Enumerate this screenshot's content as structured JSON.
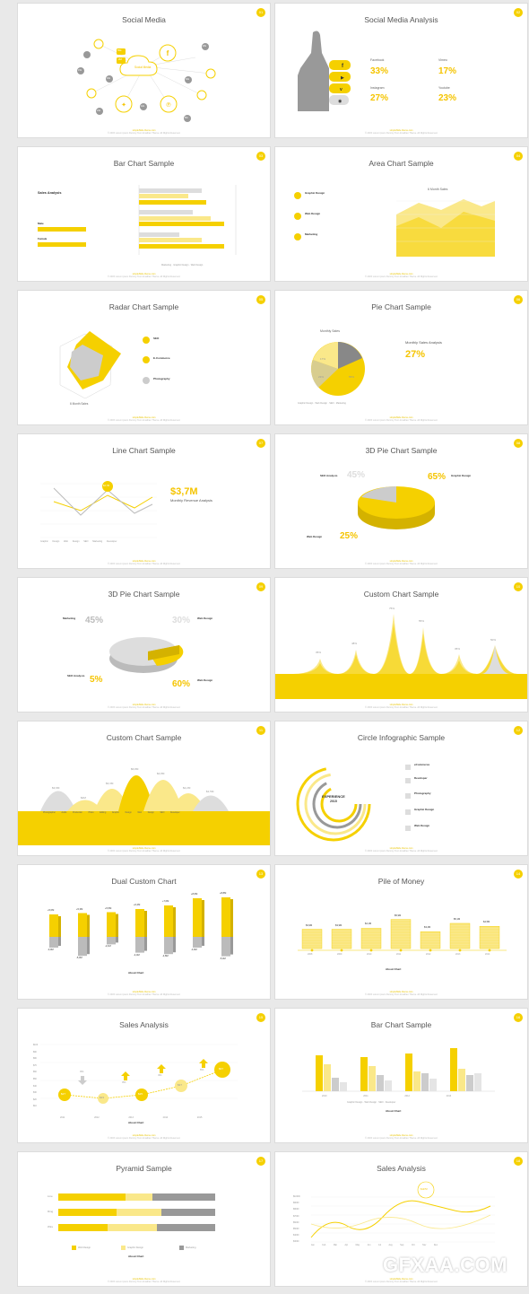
{
  "footer_label": "simpleSlide theme.com",
  "footer_copy": "© 2015 Lorem ipsum Dummy Text Jonathan Theme. All Rights Reserved.",
  "slides": [
    {
      "num": "01",
      "title": "Social Media",
      "cloud": "Social Media",
      "badges": [
        "55k",
        "2M",
        "46k",
        "15k",
        "24k",
        "42k",
        "30k",
        "28k",
        "8M"
      ]
    },
    {
      "num": "02",
      "title": "Social Media Analysis",
      "items": [
        {
          "name": "Facebook",
          "value": "33%"
        },
        {
          "name": "Vimeo",
          "value": "17%"
        },
        {
          "name": "Instagram",
          "value": "27%"
        },
        {
          "name": "Youtube",
          "value": "23%"
        }
      ]
    },
    {
      "num": "03",
      "title": "Bar Chart Sample",
      "left_title": "Sales Analysis",
      "male": "Male",
      "female": "Female",
      "legend": [
        "Marketing",
        "Graphic Design",
        "Web Design"
      ]
    },
    {
      "num": "04",
      "title": "Area Chart Sample",
      "chart_title": "6 Month Sales",
      "items": [
        "Graphic Design",
        "Web Design",
        "Marketing"
      ]
    },
    {
      "num": "05",
      "title": "Radar Chart Sample",
      "caption": "6 Month Sales",
      "axes": [
        "Web Design",
        "Graphic",
        "SEO",
        "Marketing",
        "Animation",
        "Development"
      ],
      "items": [
        "SEO",
        "E-Commerce",
        "Photography"
      ]
    },
    {
      "num": "06",
      "title": "Pie Chart Sample",
      "chart_title": "Monthly Sales",
      "right_title": "Monthly Sales Analysis",
      "big": "27%",
      "pie_labels": [
        "17%",
        "23%",
        "55%"
      ],
      "legend": [
        "Graphic Design",
        "Web Design",
        "SEO",
        "Marketing"
      ]
    },
    {
      "num": "07",
      "title": "Line Chart Sample",
      "marker": "$3,7M",
      "big": "$3,7M",
      "right_title": "Monthly Revenue Analysis",
      "xlabels": [
        "Graphic Design",
        "Web Design",
        "SEO",
        "Marketing",
        "Developer"
      ]
    },
    {
      "num": "08",
      "title": "3D Pie Chart Sample",
      "labels": [
        {
          "name": "SEO Analysis",
          "value": "45%"
        },
        {
          "name": "Graphic Design",
          "value": "65%"
        },
        {
          "name": "Web Design",
          "value": "25%"
        }
      ]
    },
    {
      "num": "09",
      "title": "3D Pie Chart Sample",
      "labels": [
        {
          "name": "Marketing",
          "value": "45%"
        },
        {
          "name": "Web Design",
          "value": "30%"
        },
        {
          "name": "SEO Analysis",
          "value": "5%"
        },
        {
          "name": "Web Design",
          "value": "60%"
        }
      ]
    },
    {
      "num": "10",
      "title": "Custom Chart Sample",
      "peaks": [
        "35%",
        "48%",
        "75%",
        "55%",
        "35%",
        "50%"
      ]
    },
    {
      "num": "11",
      "title": "Custom Chart Sample",
      "values": [
        "$3,9M",
        "$2M",
        "$3,3M",
        "$6,8M",
        "$4,8M",
        "$2,2M",
        "$1,5M"
      ],
      "cats": [
        "Photographer",
        "Audio Production",
        "Photo Editing",
        "Graphic Design",
        "Web Design",
        "SEO",
        "Developer"
      ]
    },
    {
      "num": "12",
      "title": "Circle Infographic Sample",
      "center": "EXPERIENCE",
      "year": "2015",
      "items": [
        "eCommerce",
        "Developer",
        "Photography",
        "Graphic Design",
        "Web Design"
      ]
    },
    {
      "num": "13",
      "title": "Dual Custom Chart",
      "about": "About Chart",
      "top": [
        "+5,0M",
        "+5,3M",
        "+5,5M",
        "+6,2M",
        "+7,0M",
        "+8,6M",
        "+8,8M"
      ],
      "bottom": [
        "-3,0M",
        "-5,3M",
        "-2,1M",
        "-4,4M",
        "-4,8M",
        "-3,0M",
        "-5,4M"
      ]
    },
    {
      "num": "14",
      "title": "Pile of Money",
      "about": "About Chart",
      "values": [
        "$3,9M",
        "$3,9M",
        "$4,1M",
        "$5,9M",
        "$3,4M",
        "$5,1M",
        "$4,5M"
      ],
      "years": [
        "2008",
        "2009",
        "2010",
        "2011",
        "2012",
        "2013",
        "2014"
      ]
    },
    {
      "num": "15",
      "title": "Sales Analysis",
      "about": "About Chart",
      "bubbles": [
        "$27",
        "$23",
        "$25",
        "$37",
        "$67"
      ],
      "arrows": [
        "3%",
        "3%",
        "4%",
        "6%"
      ],
      "years": [
        "2011",
        "2012",
        "2013",
        "2014",
        "2015"
      ],
      "yticks": [
        "$100",
        "$90",
        "$80",
        "$70",
        "$60",
        "$50",
        "$40",
        "$30",
        "$20",
        "$10"
      ]
    },
    {
      "num": "16",
      "title": "Bar Chart Sample",
      "about": "About Chart",
      "years": [
        "2010",
        "2011",
        "2012",
        "2013"
      ],
      "legend": [
        "Graphic Design",
        "Web Design",
        "SEO",
        "Developer"
      ]
    },
    {
      "num": "17",
      "title": "Pyramid Sample",
      "about": "About Chart",
      "rows": [
        "Line",
        "Ring",
        "Wire"
      ],
      "legend": [
        "Web Design",
        "Graphic Design",
        "Marketing"
      ]
    },
    {
      "num": "18",
      "title": "Sales Analysis",
      "marker": "$127M",
      "months": [
        "Jan",
        "Feb",
        "Mar",
        "Apr",
        "May",
        "Jun",
        "Jul",
        "Aug",
        "Sep",
        "Oct",
        "Nov",
        "Dec"
      ],
      "yticks": [
        "$10000",
        "$9000",
        "$8000",
        "$7000",
        "$6000",
        "$5000",
        "$4000",
        "$3000"
      ]
    }
  ],
  "watermark": "GFXAA.COM",
  "colors": {
    "accent": "#f5d000",
    "light": "#fae88a",
    "gray": "#a9a9a9"
  }
}
